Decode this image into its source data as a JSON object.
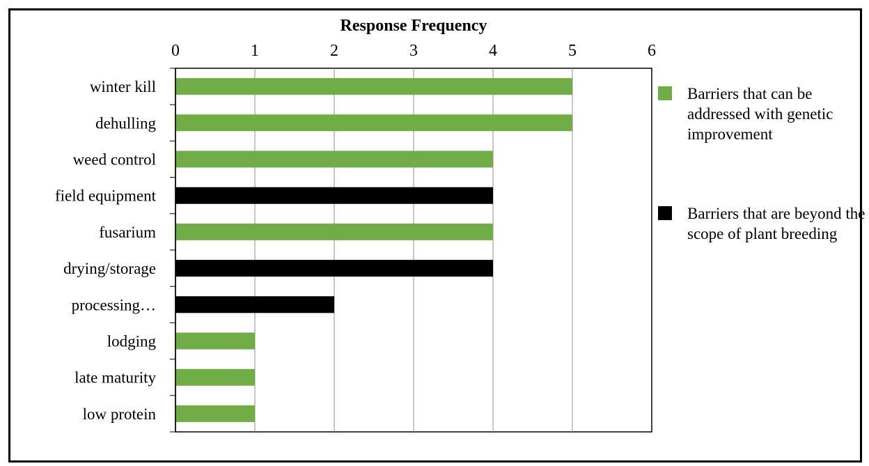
{
  "chart_data": {
    "type": "bar",
    "orientation": "horizontal",
    "title": "Response Frequency",
    "xlabel": "Response Frequency",
    "ylabel": "",
    "xlim": [
      0,
      6
    ],
    "x_ticks": [
      "0",
      "1",
      "2",
      "3",
      "4",
      "5",
      "6"
    ],
    "x_axis_position": "top",
    "grid": true,
    "legend_position": "right",
    "categories": [
      "winter kill",
      "dehulling",
      "weed control",
      "field equipment",
      "fusarium",
      "drying/storage",
      "processing…",
      "lodging",
      "late maturity",
      "low protein"
    ],
    "values": [
      5,
      5,
      4,
      4,
      4,
      4,
      2,
      1,
      1,
      1
    ],
    "bar_groups": [
      "genetic",
      "genetic",
      "genetic",
      "beyond",
      "genetic",
      "beyond",
      "beyond",
      "genetic",
      "genetic",
      "genetic"
    ],
    "series": [
      {
        "key": "genetic",
        "name": "Barriers that can be addressed with genetic improvement",
        "color": "#70ad47"
      },
      {
        "key": "beyond",
        "name": "Barriers that are beyond the scope of plant breeding",
        "color": "#000000"
      }
    ]
  }
}
